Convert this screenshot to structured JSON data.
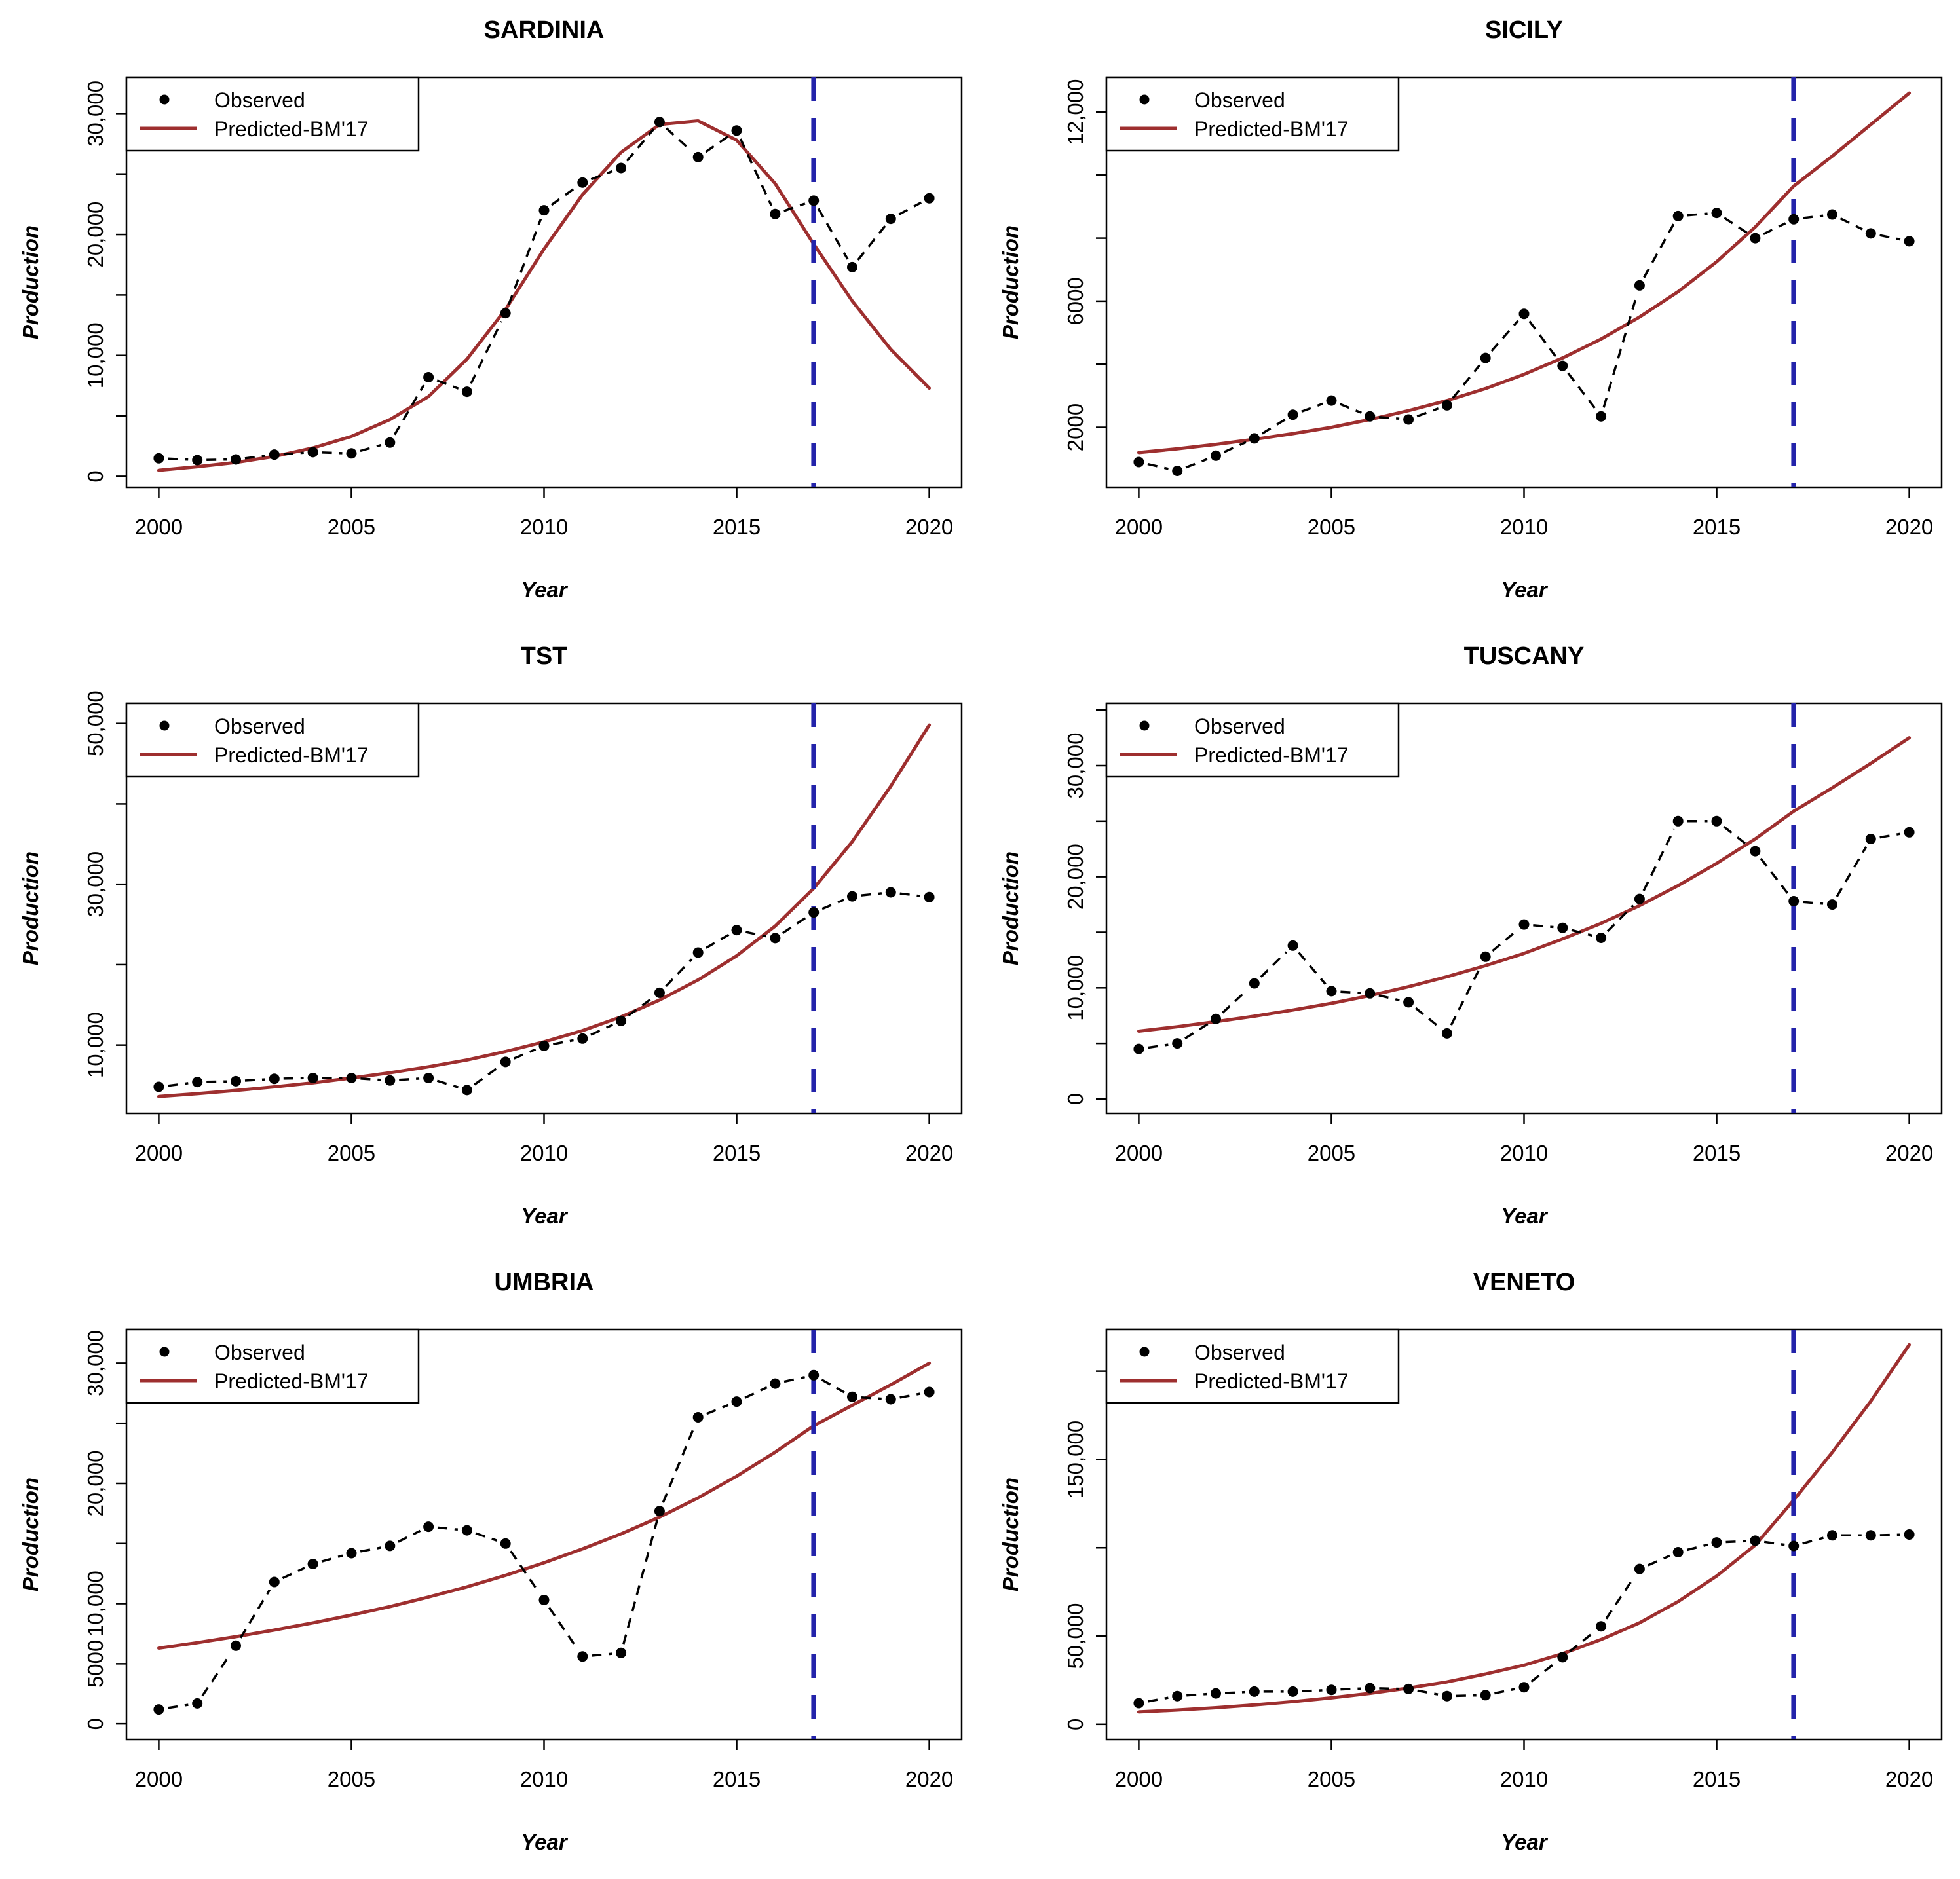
{
  "figure": {
    "background": "#ffffff",
    "columns": 2,
    "rows": 3
  },
  "colors": {
    "observed": "#000000",
    "predicted": "#9e2f2f",
    "forecast_vline": "#2323aa",
    "axis": "#000000",
    "panel_background": "#ffffff",
    "legend_background": "#ffffff"
  },
  "legend": {
    "observed_label": "Observed",
    "predicted_label": "Predicted-BM'17",
    "position": "top-left"
  },
  "axes": {
    "x_label": "Year",
    "y_label": "Production"
  },
  "chart_data": [
    {
      "type": "line",
      "title": "SARDINIA",
      "xlabel": "Year",
      "ylabel": "Production",
      "grid": false,
      "legend_position": "top-left",
      "vline_x": 2017,
      "xlim": [
        1999.16,
        2020.84
      ],
      "ylim": [
        -900,
        33000
      ],
      "xticks": [
        {
          "v": 2000,
          "label": "2000"
        },
        {
          "v": 2005,
          "label": "2005"
        },
        {
          "v": 2010,
          "label": "2010"
        },
        {
          "v": 2015,
          "label": "2015"
        },
        {
          "v": 2020,
          "label": "2020"
        }
      ],
      "yticks": [
        {
          "v": 0,
          "label": "0"
        },
        {
          "v": 5000,
          "label": ""
        },
        {
          "v": 10000,
          "label": "10,000"
        },
        {
          "v": 15000,
          "label": ""
        },
        {
          "v": 20000,
          "label": "20,000"
        },
        {
          "v": 25000,
          "label": ""
        },
        {
          "v": 30000,
          "label": "30,000"
        }
      ],
      "x": [
        2000,
        2001,
        2002,
        2003,
        2004,
        2005,
        2006,
        2007,
        2008,
        2009,
        2010,
        2011,
        2012,
        2013,
        2014,
        2015,
        2016,
        2017,
        2018,
        2019,
        2020
      ],
      "series": [
        {
          "name": "Observed",
          "role": "observed",
          "values": [
            1500,
            1350,
            1400,
            1800,
            2000,
            1900,
            2800,
            8200,
            7000,
            13500,
            22000,
            24300,
            25500,
            29300,
            26400,
            28600,
            21700,
            22800,
            17300,
            21300,
            23000
          ]
        },
        {
          "name": "Predicted-BM'17",
          "role": "predicted",
          "values": [
            500,
            800,
            1150,
            1650,
            2350,
            3300,
            4700,
            6600,
            9700,
            13800,
            18800,
            23300,
            26800,
            29100,
            29400,
            27800,
            24200,
            19200,
            14500,
            10500,
            7300
          ]
        }
      ]
    },
    {
      "type": "line",
      "title": "SICILY",
      "xlabel": "Year",
      "ylabel": "Production",
      "grid": false,
      "legend_position": "top-left",
      "vline_x": 2017,
      "xlim": [
        1999.16,
        2020.84
      ],
      "ylim": [
        100,
        13100
      ],
      "xticks": [
        {
          "v": 2000,
          "label": "2000"
        },
        {
          "v": 2005,
          "label": "2005"
        },
        {
          "v": 2010,
          "label": "2010"
        },
        {
          "v": 2015,
          "label": "2015"
        },
        {
          "v": 2020,
          "label": "2020"
        }
      ],
      "yticks": [
        {
          "v": 2000,
          "label": "2000"
        },
        {
          "v": 4000,
          "label": ""
        },
        {
          "v": 6000,
          "label": "6000"
        },
        {
          "v": 8000,
          "label": ""
        },
        {
          "v": 10000,
          "label": ""
        },
        {
          "v": 12000,
          "label": "12,000"
        }
      ],
      "x": [
        2000,
        2001,
        2002,
        2003,
        2004,
        2005,
        2006,
        2007,
        2008,
        2009,
        2010,
        2011,
        2012,
        2013,
        2014,
        2015,
        2016,
        2017,
        2018,
        2019,
        2020
      ],
      "series": [
        {
          "name": "Observed",
          "role": "observed",
          "values": [
            900,
            620,
            1100,
            1650,
            2400,
            2850,
            2350,
            2250,
            2700,
            4200,
            5600,
            3950,
            2350,
            6500,
            8700,
            8800,
            8000,
            8600,
            8750,
            8150,
            7900
          ]
        },
        {
          "name": "Predicted-BM'17",
          "role": "predicted",
          "values": [
            1200,
            1320,
            1460,
            1620,
            1800,
            2000,
            2250,
            2530,
            2850,
            3230,
            3680,
            4200,
            4800,
            5500,
            6300,
            7250,
            8350,
            9650,
            10600,
            11600,
            12600
          ]
        }
      ]
    },
    {
      "type": "line",
      "title": "TST",
      "xlabel": "Year",
      "ylabel": "Production",
      "grid": false,
      "legend_position": "top-left",
      "vline_x": 2017,
      "xlim": [
        1999.16,
        2020.84
      ],
      "ylim": [
        1500,
        52500
      ],
      "xticks": [
        {
          "v": 2000,
          "label": "2000"
        },
        {
          "v": 2005,
          "label": "2005"
        },
        {
          "v": 2010,
          "label": "2010"
        },
        {
          "v": 2015,
          "label": "2015"
        },
        {
          "v": 2020,
          "label": "2020"
        }
      ],
      "yticks": [
        {
          "v": 10000,
          "label": "10,000"
        },
        {
          "v": 20000,
          "label": ""
        },
        {
          "v": 30000,
          "label": "30,000"
        },
        {
          "v": 40000,
          "label": ""
        },
        {
          "v": 50000,
          "label": "50,000"
        }
      ],
      "x": [
        2000,
        2001,
        2002,
        2003,
        2004,
        2005,
        2006,
        2007,
        2008,
        2009,
        2010,
        2011,
        2012,
        2013,
        2014,
        2015,
        2016,
        2017,
        2018,
        2019,
        2020
      ],
      "series": [
        {
          "name": "Observed",
          "role": "observed",
          "values": [
            4800,
            5400,
            5500,
            5800,
            5900,
            5900,
            5600,
            5900,
            4400,
            7900,
            9900,
            10800,
            13000,
            16500,
            21500,
            24300,
            23300,
            26500,
            28500,
            29000,
            28400
          ]
        },
        {
          "name": "Predicted-BM'17",
          "role": "predicted",
          "values": [
            3600,
            3950,
            4350,
            4800,
            5300,
            5900,
            6550,
            7300,
            8150,
            9200,
            10400,
            11800,
            13500,
            15600,
            18100,
            21100,
            24800,
            29500,
            35300,
            42200,
            49800
          ]
        }
      ]
    },
    {
      "type": "line",
      "title": "TUSCANY",
      "xlabel": "Year",
      "ylabel": "Production",
      "grid": false,
      "legend_position": "top-left",
      "vline_x": 2017,
      "xlim": [
        1999.16,
        2020.84
      ],
      "ylim": [
        -1300,
        35600
      ],
      "xticks": [
        {
          "v": 2000,
          "label": "2000"
        },
        {
          "v": 2005,
          "label": "2005"
        },
        {
          "v": 2010,
          "label": "2010"
        },
        {
          "v": 2015,
          "label": "2015"
        },
        {
          "v": 2020,
          "label": "2020"
        }
      ],
      "yticks": [
        {
          "v": 0,
          "label": "0"
        },
        {
          "v": 5000,
          "label": ""
        },
        {
          "v": 10000,
          "label": "10,000"
        },
        {
          "v": 15000,
          "label": ""
        },
        {
          "v": 20000,
          "label": "20,000"
        },
        {
          "v": 25000,
          "label": ""
        },
        {
          "v": 30000,
          "label": "30,000"
        },
        {
          "v": 35000,
          "label": ""
        }
      ],
      "x": [
        2000,
        2001,
        2002,
        2003,
        2004,
        2005,
        2006,
        2007,
        2008,
        2009,
        2010,
        2011,
        2012,
        2013,
        2014,
        2015,
        2016,
        2017,
        2018,
        2019,
        2020
      ],
      "series": [
        {
          "name": "Observed",
          "role": "observed",
          "values": [
            4500,
            5000,
            7200,
            10400,
            13800,
            9700,
            9500,
            8700,
            5900,
            12800,
            15700,
            15400,
            14500,
            18000,
            25000,
            25000,
            22300,
            17800,
            17500,
            23400,
            24000
          ]
        },
        {
          "name": "Predicted-BM'17",
          "role": "predicted",
          "values": [
            6100,
            6500,
            6950,
            7450,
            8000,
            8600,
            9300,
            10100,
            11000,
            12000,
            13100,
            14400,
            15800,
            17400,
            19200,
            21200,
            23400,
            25900,
            28000,
            30200,
            32500
          ]
        }
      ]
    },
    {
      "type": "line",
      "title": "UMBRIA",
      "xlabel": "Year",
      "ylabel": "Production",
      "grid": false,
      "legend_position": "top-left",
      "vline_x": 2017,
      "xlim": [
        1999.16,
        2020.84
      ],
      "ylim": [
        -1300,
        32800
      ],
      "xticks": [
        {
          "v": 2000,
          "label": "2000"
        },
        {
          "v": 2005,
          "label": "2005"
        },
        {
          "v": 2010,
          "label": "2010"
        },
        {
          "v": 2015,
          "label": "2015"
        },
        {
          "v": 2020,
          "label": "2020"
        }
      ],
      "yticks": [
        {
          "v": 0,
          "label": "0"
        },
        {
          "v": 5000,
          "label": "5000"
        },
        {
          "v": 10000,
          "label": "10,000"
        },
        {
          "v": 15000,
          "label": ""
        },
        {
          "v": 20000,
          "label": "20,000"
        },
        {
          "v": 25000,
          "label": ""
        },
        {
          "v": 30000,
          "label": "30,000"
        }
      ],
      "x": [
        2000,
        2001,
        2002,
        2003,
        2004,
        2005,
        2006,
        2007,
        2008,
        2009,
        2010,
        2011,
        2012,
        2013,
        2014,
        2015,
        2016,
        2017,
        2018,
        2019,
        2020
      ],
      "series": [
        {
          "name": "Observed",
          "role": "observed",
          "values": [
            1200,
            1700,
            6500,
            11800,
            13300,
            14200,
            14800,
            16400,
            16100,
            15000,
            10300,
            5600,
            5900,
            17700,
            25500,
            26800,
            28300,
            29000,
            27200,
            27000,
            27600
          ]
        },
        {
          "name": "Predicted-BM'17",
          "role": "predicted",
          "values": [
            6300,
            6750,
            7250,
            7800,
            8400,
            9050,
            9750,
            10550,
            11400,
            12350,
            13400,
            14550,
            15800,
            17200,
            18800,
            20600,
            22600,
            24800,
            26500,
            28200,
            30000
          ]
        }
      ]
    },
    {
      "type": "line",
      "title": "VENETO",
      "xlabel": "Year",
      "ylabel": "Production",
      "grid": false,
      "legend_position": "top-left",
      "vline_x": 2017,
      "xlim": [
        1999.16,
        2020.84
      ],
      "ylim": [
        -8600,
        223600
      ],
      "xticks": [
        {
          "v": 2000,
          "label": "2000"
        },
        {
          "v": 2005,
          "label": "2005"
        },
        {
          "v": 2010,
          "label": "2010"
        },
        {
          "v": 2015,
          "label": "2015"
        },
        {
          "v": 2020,
          "label": "2020"
        }
      ],
      "yticks": [
        {
          "v": 0,
          "label": "0"
        },
        {
          "v": 50000,
          "label": "50,000"
        },
        {
          "v": 100000,
          "label": ""
        },
        {
          "v": 150000,
          "label": "150,000"
        },
        {
          "v": 200000,
          "label": ""
        }
      ],
      "x": [
        2000,
        2001,
        2002,
        2003,
        2004,
        2005,
        2006,
        2007,
        2008,
        2009,
        2010,
        2011,
        2012,
        2013,
        2014,
        2015,
        2016,
        2017,
        2018,
        2019,
        2020
      ],
      "series": [
        {
          "name": "Observed",
          "role": "observed",
          "values": [
            12000,
            16000,
            17500,
            18500,
            18500,
            19500,
            20500,
            20000,
            16000,
            16500,
            21000,
            38000,
            55500,
            88000,
            97500,
            103000,
            104000,
            101000,
            107000,
            107000,
            107500
          ]
        },
        {
          "name": "Predicted-BM'17",
          "role": "predicted",
          "values": [
            7000,
            8100,
            9400,
            11000,
            12800,
            15000,
            17500,
            20500,
            24000,
            28500,
            33500,
            40000,
            48000,
            57500,
            69500,
            84000,
            101500,
            127000,
            154000,
            183000,
            215000
          ]
        }
      ]
    }
  ]
}
